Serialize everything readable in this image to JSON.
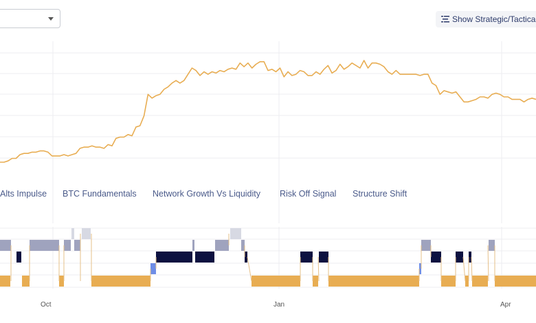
{
  "controls": {
    "toggle_label": "Show Strategic/Tactical",
    "toggle_icon": "list-toggle-icon",
    "dropdown_icon": "chevron-down-icon"
  },
  "legend": {
    "items": [
      "Alts Impulse",
      "BTC Fundamentals",
      "Network Growth Vs Liquidity",
      "Risk Off Signal",
      "Structure Shift"
    ]
  },
  "colors": {
    "line": "#e8ad52",
    "orange": "#e8ad52",
    "navy": "#0c1140",
    "slate": "#9fa3be",
    "light": "#d7d9e3",
    "blue": "#6f8ee6",
    "grid": "#ececf1"
  },
  "chart_data": [
    {
      "type": "line",
      "x_tick_labels": [
        "Oct",
        "Jan",
        "Apr"
      ],
      "series": [
        {
          "values": [
            10,
            10,
            11,
            13,
            13,
            16,
            17,
            17,
            18,
            18,
            19,
            19,
            18,
            15,
            15,
            15,
            16,
            15,
            16,
            17,
            21,
            22,
            22,
            23,
            22,
            22,
            21,
            24,
            23,
            29,
            30,
            30,
            32,
            31,
            38,
            39,
            47,
            64,
            61,
            63,
            64,
            68,
            70,
            73,
            75,
            73,
            75,
            80,
            85,
            83,
            79,
            82,
            80,
            82,
            81,
            83,
            82,
            84,
            85,
            84,
            89,
            86,
            89,
            85,
            88,
            90,
            90,
            83,
            84,
            82,
            85,
            78,
            82,
            79,
            80,
            83,
            82,
            79,
            79,
            82,
            80,
            84,
            87,
            81,
            83,
            88,
            84,
            86,
            89,
            87,
            85,
            91,
            85,
            89,
            89,
            88,
            86,
            82,
            80,
            83,
            80,
            80,
            80,
            80,
            80,
            79,
            80,
            80,
            73,
            71,
            64,
            67,
            66,
            65,
            66,
            62,
            58,
            58,
            59,
            60,
            62,
            62,
            61,
            64,
            65,
            64,
            62,
            62,
            60,
            60,
            60,
            58,
            60,
            61,
            60
          ]
        }
      ]
    },
    {
      "type": "heatmap",
      "rows": [
        "slate",
        "navy",
        "orange"
      ],
      "x_tick_labels": [
        "Oct",
        "Jan",
        "Apr"
      ]
    }
  ]
}
